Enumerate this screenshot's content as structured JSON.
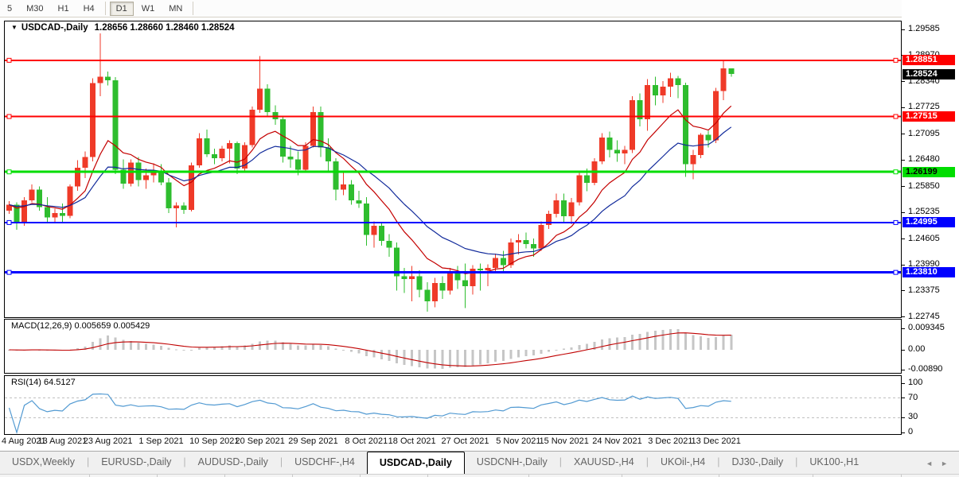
{
  "toolbar": {
    "timeframes": [
      "5",
      "M30",
      "H1",
      "H4",
      "D1",
      "W1",
      "MN"
    ],
    "active": "D1",
    "separators_after": [
      3,
      6
    ]
  },
  "chart": {
    "collapse_icon": "▼",
    "symbol_label": "USDCAD-,Daily",
    "ohlc_text": "1.28656 1.28660 1.28460 1.28524"
  },
  "indicators": {
    "macd_label": "MACD(12,26,9)",
    "macd_values": "0.005659 0.005429",
    "rsi_label": "RSI(14)",
    "rsi_value": "64.5127"
  },
  "price_axis": {
    "ticks": [
      "1.29585",
      "1.28970",
      "1.28340",
      "1.27725",
      "1.27095",
      "1.26480",
      "1.25850",
      "1.25235",
      "1.24605",
      "1.23990",
      "1.23375",
      "1.22745"
    ],
    "current_price": "1.28524",
    "current_bg": "#000000",
    "current_fg": "#ffffff"
  },
  "macd_axis": {
    "ticks": [
      {
        "v": 0.009345,
        "label": "0.009345"
      },
      {
        "v": 0,
        "label": "0.00"
      },
      {
        "v": -0.0089,
        "label": "-0.00890"
      }
    ]
  },
  "rsi_axis": {
    "ticks": [
      {
        "v": 100,
        "label": "100"
      },
      {
        "v": 70,
        "label": "70"
      },
      {
        "v": 30,
        "label": "30"
      },
      {
        "v": 0,
        "label": "0"
      }
    ]
  },
  "levels": [
    {
      "price": 1.28851,
      "label": "1.28851",
      "color": "#ff0000",
      "text_color": "#ffffff",
      "width": 2,
      "kind": "resistance"
    },
    {
      "price": 1.27515,
      "label": "1.27515",
      "color": "#ff0000",
      "text_color": "#ffffff",
      "width": 2,
      "kind": "resistance"
    },
    {
      "price": 1.26199,
      "label": "1.26199",
      "color": "#00dd00",
      "text_color": "#000000",
      "width": 3,
      "kind": "pivot"
    },
    {
      "price": 1.24995,
      "label": "1.24995",
      "color": "#0000ff",
      "text_color": "#ffffff",
      "width": 2,
      "kind": "support"
    },
    {
      "price": 1.2381,
      "label": "1.23810",
      "color": "#0000ff",
      "text_color": "#ffffff",
      "width": 3,
      "kind": "support"
    }
  ],
  "chart_data": {
    "type": "candlestick",
    "title": "USDCAD-,Daily",
    "timeframe": "Daily",
    "price_ylim": [
      1.22726,
      1.29793
    ],
    "up_color": "#ef3a28",
    "down_color": "#2ebd2e",
    "x_labels": [
      {
        "i": 0,
        "label": "4 Aug 2021"
      },
      {
        "i": 7,
        "label": "13 Aug 2021"
      },
      {
        "i": 13,
        "label": "23 Aug 2021"
      },
      {
        "i": 20,
        "label": "1 Sep 2021"
      },
      {
        "i": 27,
        "label": "10 Sep 2021"
      },
      {
        "i": 33,
        "label": "20 Sep 2021"
      },
      {
        "i": 40,
        "label": "29 Sep 2021"
      },
      {
        "i": 47,
        "label": "8 Oct 2021"
      },
      {
        "i": 53,
        "label": "18 Oct 2021"
      },
      {
        "i": 60,
        "label": "27 Oct 2021"
      },
      {
        "i": 67,
        "label": "5 Nov 2021"
      },
      {
        "i": 73,
        "label": "15 Nov 2021"
      },
      {
        "i": 80,
        "label": "24 Nov 2021"
      },
      {
        "i": 87,
        "label": "3 Dec 2021"
      },
      {
        "i": 93,
        "label": "13 Dec 2021"
      }
    ],
    "ohlc": [
      [
        1.2528,
        1.255,
        1.252,
        1.2542
      ],
      [
        1.2542,
        1.2548,
        1.2482,
        1.2498
      ],
      [
        1.2498,
        1.256,
        1.2492,
        1.2552
      ],
      [
        1.2552,
        1.259,
        1.2548,
        1.2578
      ],
      [
        1.2578,
        1.2585,
        1.2528,
        1.2536
      ],
      [
        1.2536,
        1.256,
        1.25,
        1.2512
      ],
      [
        1.2512,
        1.2532,
        1.2498,
        1.2522
      ],
      [
        1.2522,
        1.2545,
        1.25,
        1.2515
      ],
      [
        1.2515,
        1.259,
        1.251,
        1.2585
      ],
      [
        1.2585,
        1.2648,
        1.2575,
        1.263
      ],
      [
        1.263,
        1.2668,
        1.2605,
        1.2655
      ],
      [
        1.2655,
        1.2842,
        1.2645,
        1.2831
      ],
      [
        1.2831,
        1.2949,
        1.28,
        1.2846
      ],
      [
        1.2846,
        1.2858,
        1.2825,
        1.2838
      ],
      [
        1.2838,
        1.2845,
        1.2615,
        1.2625
      ],
      [
        1.2625,
        1.265,
        1.258,
        1.2592
      ],
      [
        1.2592,
        1.265,
        1.2585,
        1.2642
      ],
      [
        1.2642,
        1.2655,
        1.2585,
        1.26
      ],
      [
        1.26,
        1.2628,
        1.258,
        1.2612
      ],
      [
        1.2612,
        1.264,
        1.2595,
        1.2618
      ],
      [
        1.2618,
        1.2638,
        1.2588,
        1.2595
      ],
      [
        1.2595,
        1.2605,
        1.2522,
        1.2533
      ],
      [
        1.2533,
        1.2548,
        1.2488,
        1.254
      ],
      [
        1.254,
        1.2548,
        1.252,
        1.253
      ],
      [
        1.253,
        1.2642,
        1.2526,
        1.2635
      ],
      [
        1.2635,
        1.2712,
        1.263,
        1.27
      ],
      [
        1.27,
        1.272,
        1.2655,
        1.2662
      ],
      [
        1.2662,
        1.2675,
        1.2638,
        1.2652
      ],
      [
        1.2652,
        1.2682,
        1.2645,
        1.2675
      ],
      [
        1.2675,
        1.2695,
        1.264,
        1.2688
      ],
      [
        1.2688,
        1.2692,
        1.2615,
        1.2628
      ],
      [
        1.2628,
        1.269,
        1.2622,
        1.2684
      ],
      [
        1.2684,
        1.2775,
        1.2678,
        1.2768
      ],
      [
        1.2768,
        1.2895,
        1.276,
        1.2818
      ],
      [
        1.2818,
        1.2828,
        1.2752,
        1.2762
      ],
      [
        1.2762,
        1.2778,
        1.2732,
        1.2745
      ],
      [
        1.2745,
        1.2752,
        1.2642,
        1.2656
      ],
      [
        1.2656,
        1.2682,
        1.263,
        1.265
      ],
      [
        1.265,
        1.2668,
        1.2612,
        1.2625
      ],
      [
        1.2625,
        1.269,
        1.262,
        1.2682
      ],
      [
        1.2682,
        1.2775,
        1.2678,
        1.2762
      ],
      [
        1.2762,
        1.2775,
        1.2655,
        1.2678
      ],
      [
        1.2678,
        1.27,
        1.2618,
        1.2645
      ],
      [
        1.2645,
        1.2652,
        1.2552,
        1.2578
      ],
      [
        1.2578,
        1.2622,
        1.2565,
        1.259
      ],
      [
        1.259,
        1.26,
        1.2542,
        1.2552
      ],
      [
        1.2552,
        1.2575,
        1.2534,
        1.2545
      ],
      [
        1.2545,
        1.256,
        1.2445,
        1.247
      ],
      [
        1.247,
        1.2502,
        1.244,
        1.2492
      ],
      [
        1.2492,
        1.25,
        1.2445,
        1.2456
      ],
      [
        1.2456,
        1.2472,
        1.2418,
        1.244
      ],
      [
        1.244,
        1.2452,
        1.2338,
        1.2372
      ],
      [
        1.2372,
        1.2392,
        1.2332,
        1.2365
      ],
      [
        1.2365,
        1.2396,
        1.2312,
        1.2372
      ],
      [
        1.2372,
        1.2386,
        1.2322,
        1.234
      ],
      [
        1.234,
        1.2358,
        1.2288,
        1.2312
      ],
      [
        1.2312,
        1.2368,
        1.2298,
        1.2356
      ],
      [
        1.2356,
        1.2372,
        1.2318,
        1.2338
      ],
      [
        1.2338,
        1.2392,
        1.2328,
        1.2382
      ],
      [
        1.2382,
        1.2396,
        1.2342,
        1.2362
      ],
      [
        1.2362,
        1.2402,
        1.2296,
        1.2348
      ],
      [
        1.2348,
        1.2398,
        1.2328,
        1.239
      ],
      [
        1.239,
        1.2402,
        1.2338,
        1.2386
      ],
      [
        1.2386,
        1.24,
        1.2348,
        1.2392
      ],
      [
        1.2392,
        1.2426,
        1.2384,
        1.2415
      ],
      [
        1.2415,
        1.2432,
        1.2382,
        1.2398
      ],
      [
        1.2398,
        1.2462,
        1.2392,
        1.2452
      ],
      [
        1.2452,
        1.2472,
        1.2424,
        1.2458
      ],
      [
        1.2458,
        1.2476,
        1.2438,
        1.2448
      ],
      [
        1.2448,
        1.2462,
        1.2418,
        1.2438
      ],
      [
        1.2438,
        1.2502,
        1.2432,
        1.2494
      ],
      [
        1.2494,
        1.2528,
        1.2484,
        1.252
      ],
      [
        1.252,
        1.2568,
        1.2512,
        1.2552
      ],
      [
        1.2552,
        1.2568,
        1.2498,
        1.2514
      ],
      [
        1.2514,
        1.2558,
        1.2496,
        1.2548
      ],
      [
        1.2548,
        1.262,
        1.254,
        1.2612
      ],
      [
        1.2612,
        1.2628,
        1.2574,
        1.2594
      ],
      [
        1.2594,
        1.2652,
        1.2588,
        1.2645
      ],
      [
        1.2645,
        1.2712,
        1.2638,
        1.2702
      ],
      [
        1.2702,
        1.2716,
        1.2654,
        1.2672
      ],
      [
        1.2672,
        1.2695,
        1.2644,
        1.2664
      ],
      [
        1.2664,
        1.2682,
        1.2638,
        1.2672
      ],
      [
        1.2672,
        1.28,
        1.2665,
        1.279
      ],
      [
        1.279,
        1.2806,
        1.2728,
        1.2745
      ],
      [
        1.2745,
        1.284,
        1.2718,
        1.2826
      ],
      [
        1.2826,
        1.2846,
        1.2778,
        1.2802
      ],
      [
        1.2802,
        1.2836,
        1.2784,
        1.2822
      ],
      [
        1.2822,
        1.2856,
        1.2798,
        1.2842
      ],
      [
        1.2842,
        1.2848,
        1.2795,
        1.2826
      ],
      [
        1.2826,
        1.2832,
        1.2608,
        1.2638
      ],
      [
        1.2638,
        1.2672,
        1.2602,
        1.266
      ],
      [
        1.266,
        1.2712,
        1.2652,
        1.2708
      ],
      [
        1.2708,
        1.2718,
        1.2678,
        1.2695
      ],
      [
        1.2695,
        1.282,
        1.2688,
        1.2812
      ],
      [
        1.2812,
        1.2885,
        1.279,
        1.2866
      ],
      [
        1.28656,
        1.2866,
        1.2846,
        1.28524
      ]
    ],
    "ma": [
      {
        "period": 10,
        "color": "#c40000"
      },
      {
        "period": 20,
        "color": "#112a9b"
      }
    ],
    "macd": {
      "fast": 12,
      "slow": 26,
      "signal": 9,
      "hist_color": "#c6c6c6",
      "signal_color": "#c00000",
      "ylim": [
        -0.0101,
        0.0133
      ]
    },
    "rsi": {
      "period": 14,
      "color": "#529ad2",
      "levels": [
        70,
        30
      ],
      "ylim": [
        0,
        100
      ]
    }
  },
  "tabs": {
    "items": [
      "USDX,Weekly",
      "EURUSD-,Daily",
      "AUDUSD-,Daily",
      "USDCHF-,H4",
      "USDCAD-,Daily",
      "USDCNH-,Daily",
      "XAUUSD-,H4",
      "UKOil-,H4",
      "DJ30-,Daily",
      "UK100-,H1"
    ],
    "active_index": 4,
    "scroll_left_icon": "◄",
    "scroll_right_icon": "►"
  }
}
